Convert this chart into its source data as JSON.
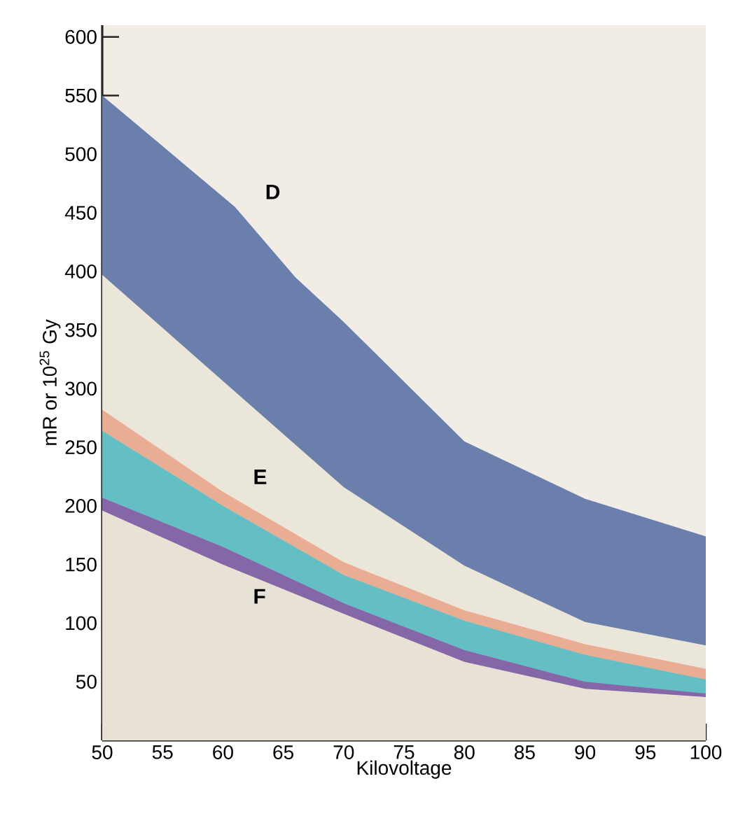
{
  "chart_data": {
    "type": "area",
    "xlabel": "Kilovoltage",
    "ylabel": "mR or 10$^{25}$ Gy",
    "xlim": [
      50,
      100
    ],
    "ylim": [
      0,
      610
    ],
    "xticks": [
      50,
      55,
      60,
      65,
      70,
      75,
      80,
      85,
      90,
      95,
      100
    ],
    "yticks": [
      50,
      100,
      150,
      200,
      250,
      300,
      350,
      400,
      450,
      500,
      550,
      600
    ],
    "series": [
      {
        "name": "D",
        "color": "#6a7fab",
        "x": [
          50,
          61,
          66,
          70,
          80,
          90,
          100
        ],
        "values": [
          550,
          455,
          395,
          357,
          255,
          206,
          174
        ]
      },
      {
        "color": "#ebe6da",
        "x": [
          50,
          70,
          80,
          90,
          100
        ],
        "values": [
          397,
          216,
          149,
          101,
          81
        ]
      },
      {
        "name": "E",
        "color": "#e9ad94",
        "x": [
          50,
          60,
          70,
          80,
          90,
          100
        ],
        "values": [
          282,
          212,
          152,
          111,
          82,
          61
        ]
      },
      {
        "color": "#63bfc4",
        "x": [
          50,
          60,
          70,
          80,
          90,
          100
        ],
        "values": [
          264,
          200,
          141,
          102,
          73,
          52
        ]
      },
      {
        "name": "F",
        "color": "#8566a8",
        "x": [
          50,
          60,
          70,
          80,
          90,
          100
        ],
        "values": [
          207,
          165,
          117,
          77,
          50,
          40
        ]
      },
      {
        "color": "#e7e2d5",
        "x": [
          50,
          60,
          70,
          80,
          90,
          100
        ],
        "values": [
          196,
          150,
          108,
          67,
          44,
          37
        ]
      }
    ]
  }
}
